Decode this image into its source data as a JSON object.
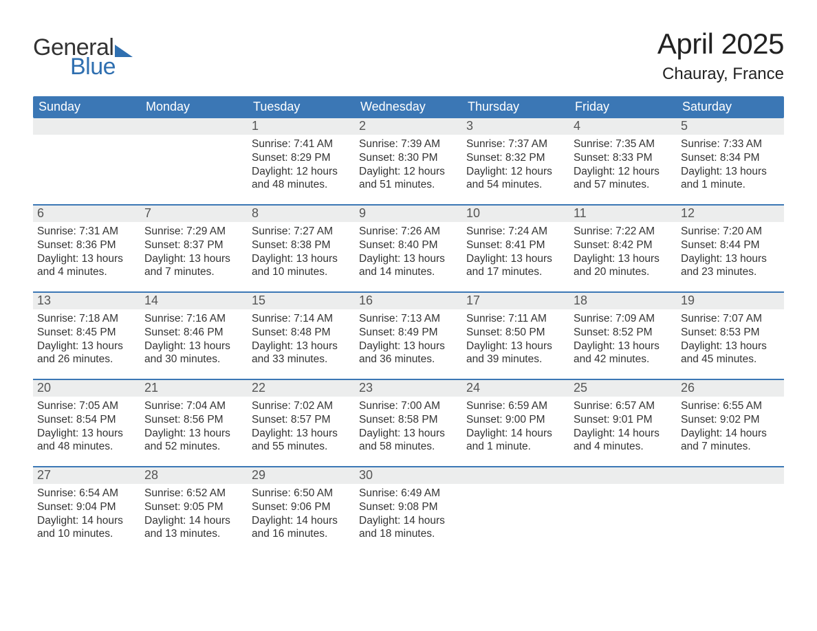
{
  "logo": {
    "line1": "General",
    "line2": "Blue"
  },
  "title": {
    "month": "April 2025",
    "location": "Chauray, France"
  },
  "colors": {
    "header_bg": "#3b77b5",
    "header_text": "#ffffff",
    "accent": "#2f6fb0",
    "daynum_bg": "#eceded",
    "body_text": "#333333",
    "background": "#ffffff"
  },
  "fonts": {
    "family": "Arial",
    "title_size_pt": 32,
    "location_size_pt": 18,
    "dayname_size_pt": 14,
    "body_size_pt": 12
  },
  "dayNames": [
    "Sunday",
    "Monday",
    "Tuesday",
    "Wednesday",
    "Thursday",
    "Friday",
    "Saturday"
  ],
  "weeks": [
    [
      {
        "day": null
      },
      {
        "day": null
      },
      {
        "day": "1",
        "sunrise": "Sunrise: 7:41 AM",
        "sunset": "Sunset: 8:29 PM",
        "daylight": "Daylight: 12 hours and 48 minutes."
      },
      {
        "day": "2",
        "sunrise": "Sunrise: 7:39 AM",
        "sunset": "Sunset: 8:30 PM",
        "daylight": "Daylight: 12 hours and 51 minutes."
      },
      {
        "day": "3",
        "sunrise": "Sunrise: 7:37 AM",
        "sunset": "Sunset: 8:32 PM",
        "daylight": "Daylight: 12 hours and 54 minutes."
      },
      {
        "day": "4",
        "sunrise": "Sunrise: 7:35 AM",
        "sunset": "Sunset: 8:33 PM",
        "daylight": "Daylight: 12 hours and 57 minutes."
      },
      {
        "day": "5",
        "sunrise": "Sunrise: 7:33 AM",
        "sunset": "Sunset: 8:34 PM",
        "daylight": "Daylight: 13 hours and 1 minute."
      }
    ],
    [
      {
        "day": "6",
        "sunrise": "Sunrise: 7:31 AM",
        "sunset": "Sunset: 8:36 PM",
        "daylight": "Daylight: 13 hours and 4 minutes."
      },
      {
        "day": "7",
        "sunrise": "Sunrise: 7:29 AM",
        "sunset": "Sunset: 8:37 PM",
        "daylight": "Daylight: 13 hours and 7 minutes."
      },
      {
        "day": "8",
        "sunrise": "Sunrise: 7:27 AM",
        "sunset": "Sunset: 8:38 PM",
        "daylight": "Daylight: 13 hours and 10 minutes."
      },
      {
        "day": "9",
        "sunrise": "Sunrise: 7:26 AM",
        "sunset": "Sunset: 8:40 PM",
        "daylight": "Daylight: 13 hours and 14 minutes."
      },
      {
        "day": "10",
        "sunrise": "Sunrise: 7:24 AM",
        "sunset": "Sunset: 8:41 PM",
        "daylight": "Daylight: 13 hours and 17 minutes."
      },
      {
        "day": "11",
        "sunrise": "Sunrise: 7:22 AM",
        "sunset": "Sunset: 8:42 PM",
        "daylight": "Daylight: 13 hours and 20 minutes."
      },
      {
        "day": "12",
        "sunrise": "Sunrise: 7:20 AM",
        "sunset": "Sunset: 8:44 PM",
        "daylight": "Daylight: 13 hours and 23 minutes."
      }
    ],
    [
      {
        "day": "13",
        "sunrise": "Sunrise: 7:18 AM",
        "sunset": "Sunset: 8:45 PM",
        "daylight": "Daylight: 13 hours and 26 minutes."
      },
      {
        "day": "14",
        "sunrise": "Sunrise: 7:16 AM",
        "sunset": "Sunset: 8:46 PM",
        "daylight": "Daylight: 13 hours and 30 minutes."
      },
      {
        "day": "15",
        "sunrise": "Sunrise: 7:14 AM",
        "sunset": "Sunset: 8:48 PM",
        "daylight": "Daylight: 13 hours and 33 minutes."
      },
      {
        "day": "16",
        "sunrise": "Sunrise: 7:13 AM",
        "sunset": "Sunset: 8:49 PM",
        "daylight": "Daylight: 13 hours and 36 minutes."
      },
      {
        "day": "17",
        "sunrise": "Sunrise: 7:11 AM",
        "sunset": "Sunset: 8:50 PM",
        "daylight": "Daylight: 13 hours and 39 minutes."
      },
      {
        "day": "18",
        "sunrise": "Sunrise: 7:09 AM",
        "sunset": "Sunset: 8:52 PM",
        "daylight": "Daylight: 13 hours and 42 minutes."
      },
      {
        "day": "19",
        "sunrise": "Sunrise: 7:07 AM",
        "sunset": "Sunset: 8:53 PM",
        "daylight": "Daylight: 13 hours and 45 minutes."
      }
    ],
    [
      {
        "day": "20",
        "sunrise": "Sunrise: 7:05 AM",
        "sunset": "Sunset: 8:54 PM",
        "daylight": "Daylight: 13 hours and 48 minutes."
      },
      {
        "day": "21",
        "sunrise": "Sunrise: 7:04 AM",
        "sunset": "Sunset: 8:56 PM",
        "daylight": "Daylight: 13 hours and 52 minutes."
      },
      {
        "day": "22",
        "sunrise": "Sunrise: 7:02 AM",
        "sunset": "Sunset: 8:57 PM",
        "daylight": "Daylight: 13 hours and 55 minutes."
      },
      {
        "day": "23",
        "sunrise": "Sunrise: 7:00 AM",
        "sunset": "Sunset: 8:58 PM",
        "daylight": "Daylight: 13 hours and 58 minutes."
      },
      {
        "day": "24",
        "sunrise": "Sunrise: 6:59 AM",
        "sunset": "Sunset: 9:00 PM",
        "daylight": "Daylight: 14 hours and 1 minute."
      },
      {
        "day": "25",
        "sunrise": "Sunrise: 6:57 AM",
        "sunset": "Sunset: 9:01 PM",
        "daylight": "Daylight: 14 hours and 4 minutes."
      },
      {
        "day": "26",
        "sunrise": "Sunrise: 6:55 AM",
        "sunset": "Sunset: 9:02 PM",
        "daylight": "Daylight: 14 hours and 7 minutes."
      }
    ],
    [
      {
        "day": "27",
        "sunrise": "Sunrise: 6:54 AM",
        "sunset": "Sunset: 9:04 PM",
        "daylight": "Daylight: 14 hours and 10 minutes."
      },
      {
        "day": "28",
        "sunrise": "Sunrise: 6:52 AM",
        "sunset": "Sunset: 9:05 PM",
        "daylight": "Daylight: 14 hours and 13 minutes."
      },
      {
        "day": "29",
        "sunrise": "Sunrise: 6:50 AM",
        "sunset": "Sunset: 9:06 PM",
        "daylight": "Daylight: 14 hours and 16 minutes."
      },
      {
        "day": "30",
        "sunrise": "Sunrise: 6:49 AM",
        "sunset": "Sunset: 9:08 PM",
        "daylight": "Daylight: 14 hours and 18 minutes."
      },
      {
        "day": null
      },
      {
        "day": null
      },
      {
        "day": null
      }
    ]
  ]
}
